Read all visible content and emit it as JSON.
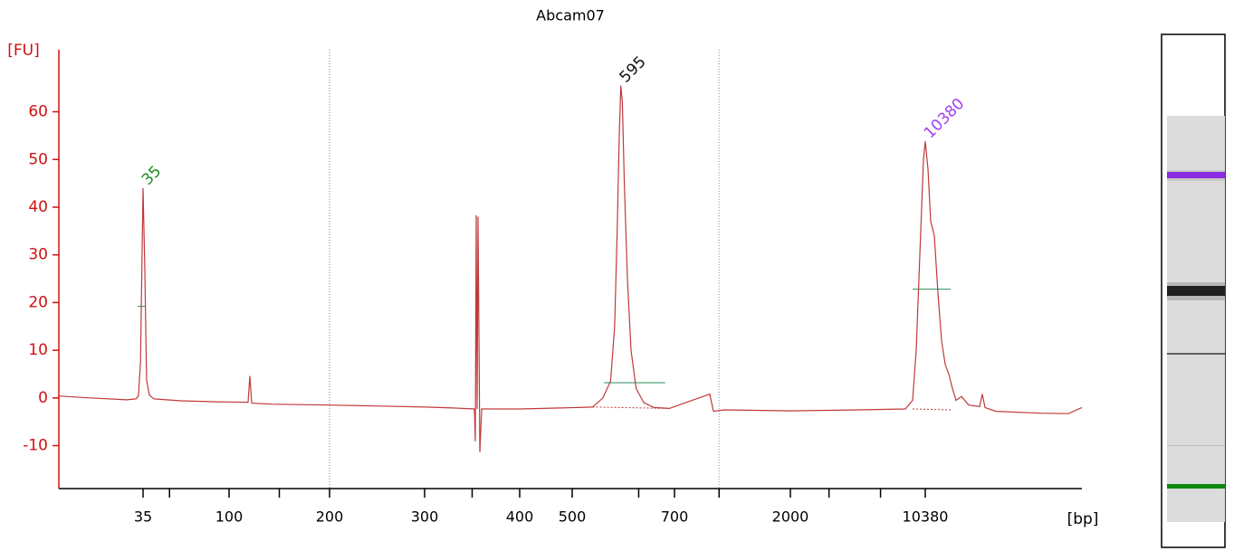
{
  "chart_data": {
    "type": "line",
    "title": "Abcam07",
    "y_label": "[FU]",
    "x_label": "[bp]",
    "color": "#c0393b",
    "xlim": [
      15,
      20000
    ],
    "xticks": [
      35,
      100,
      200,
      300,
      400,
      500,
      700,
      2000,
      10380
    ],
    "minor_xticks": [
      55,
      150,
      350,
      630,
      1200,
      4400,
      7600
    ],
    "ylim": [
      -19,
      73
    ],
    "yticks": [
      -10,
      0,
      10,
      20,
      30,
      40,
      50,
      60
    ],
    "reference_lines": [
      200,
      1200
    ],
    "x": [
      15,
      22.5,
      31.1,
      33.3,
      33.9,
      34.4,
      35,
      36.4,
      37.7,
      39.8,
      43.2,
      63.7,
      91.1,
      118.9,
      120.7,
      122.5,
      142.3,
      200,
      253.3,
      300,
      329.5,
      352.4,
      353.3,
      354.3,
      355.2,
      356.2,
      358.1,
      360,
      400,
      479.3,
      540,
      560,
      575,
      583,
      588,
      592,
      595,
      598,
      602,
      608,
      615,
      625,
      640,
      660,
      690,
      1096,
      1137,
      1259,
      2000,
      6327,
      9144,
      9593,
      9818,
      10099,
      10268,
      10380,
      10547,
      10713,
      10936,
      11158,
      11380,
      11602,
      11825,
      12047,
      12269,
      12603,
      13048,
      13715,
      13882,
      14049,
      14716,
      17496,
      19164,
      20000
    ],
    "values": [
      0.4,
      0,
      -0.4,
      -0.2,
      0.4,
      7.6,
      44,
      26.6,
      3.8,
      0.6,
      -0.2,
      -0.6,
      -0.8,
      -0.9,
      4.6,
      -1.1,
      -1.3,
      -1.5,
      -1.7,
      -1.9,
      -2.1,
      -2.3,
      -9.1,
      38.3,
      -2.3,
      38,
      -11.4,
      -2.3,
      -2.3,
      -2.1,
      -1.9,
      0,
      3.5,
      15,
      35,
      55,
      65.5,
      62,
      45,
      25,
      10,
      2,
      -1,
      -2,
      -2.2,
      0.8,
      -2.8,
      -2.5,
      -2.7,
      -2.5,
      -2.3,
      -0.5,
      10,
      35,
      50,
      53.8,
      48,
      37,
      34,
      22,
      12,
      7,
      5,
      2,
      -0.5,
      0.3,
      -1.5,
      -1.8,
      0.8,
      -2,
      -2.8,
      -3.2,
      -3.3,
      -2
    ],
    "peaks": [
      {
        "label": "35",
        "x": 35,
        "value": 44,
        "color": "#1e8a1e",
        "marker": {
          "y": 19.2,
          "x": [
            33.7,
            36.9
          ]
        }
      },
      {
        "label": "595",
        "x": 595,
        "value": 65.5,
        "color": "#111111",
        "marker": {
          "y": 3.2,
          "x": [
            562,
            682
          ]
        },
        "baseline": {
          "x": [
            540,
            690
          ],
          "y": [
            -1.9,
            -2.2
          ]
        }
      },
      {
        "label": "10380",
        "x": 10380,
        "value": 53.8,
        "color": "#a040f0",
        "marker": {
          "y": 22.8,
          "x": [
            9593,
            11936
          ]
        },
        "baseline": {
          "x": [
            9593,
            11936
          ],
          "y": [
            -2.3,
            -2.5
          ]
        }
      }
    ]
  }
}
